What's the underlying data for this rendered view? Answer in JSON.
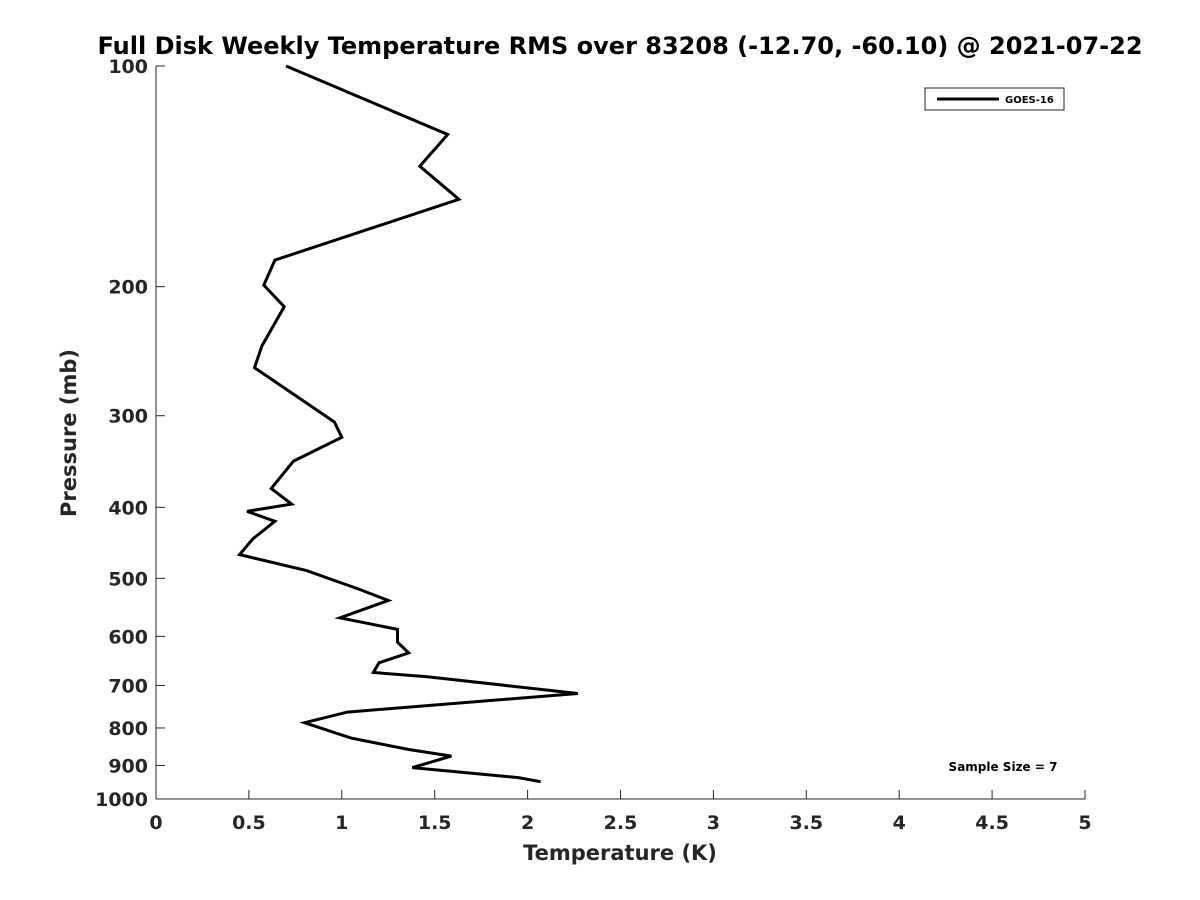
{
  "chart_data": {
    "type": "line",
    "title": "Full Disk Weekly Temperature RMS over 83208 (-12.70, -60.10) @ 2021-07-22",
    "xlabel": "Temperature (K)",
    "ylabel": "Pressure (mb)",
    "xlim": [
      0,
      5
    ],
    "ylim": [
      1000,
      100
    ],
    "yscale": "log",
    "y_reversed": true,
    "grid": false,
    "xticks": [
      "0",
      "0.5",
      "1",
      "1.5",
      "2",
      "2.5",
      "3",
      "3.5",
      "4",
      "4.5",
      "5"
    ],
    "yticks": [
      "100",
      "200",
      "300",
      "400",
      "500",
      "600",
      "700",
      "800",
      "900",
      "1000"
    ],
    "legend_position": "top-right",
    "annotation": "Sample Size = 7",
    "series": [
      {
        "name": "GOES-16",
        "color": "#000000",
        "x": [
          0.7,
          1.57,
          1.42,
          1.63,
          0.64,
          0.58,
          0.69,
          0.57,
          0.53,
          0.96,
          1.0,
          0.74,
          0.62,
          0.73,
          0.49,
          0.64,
          0.52,
          0.45,
          0.81,
          1.09,
          1.25,
          0.99,
          1.3,
          1.3,
          1.36,
          1.2,
          1.17,
          1.46,
          2.27,
          1.03,
          0.8,
          0.95,
          1.05,
          1.36,
          1.59,
          1.38,
          1.95,
          2.07
        ],
        "y": [
          100,
          124,
          137,
          152,
          184,
          199,
          213,
          241,
          258,
          306,
          321,
          346,
          377,
          396,
          405,
          418,
          442,
          464,
          488,
          517,
          536,
          566,
          587,
          611,
          632,
          652,
          672,
          681,
          718,
          761,
          787,
          810,
          826,
          856,
          874,
          906,
          935,
          947
        ]
      }
    ]
  }
}
